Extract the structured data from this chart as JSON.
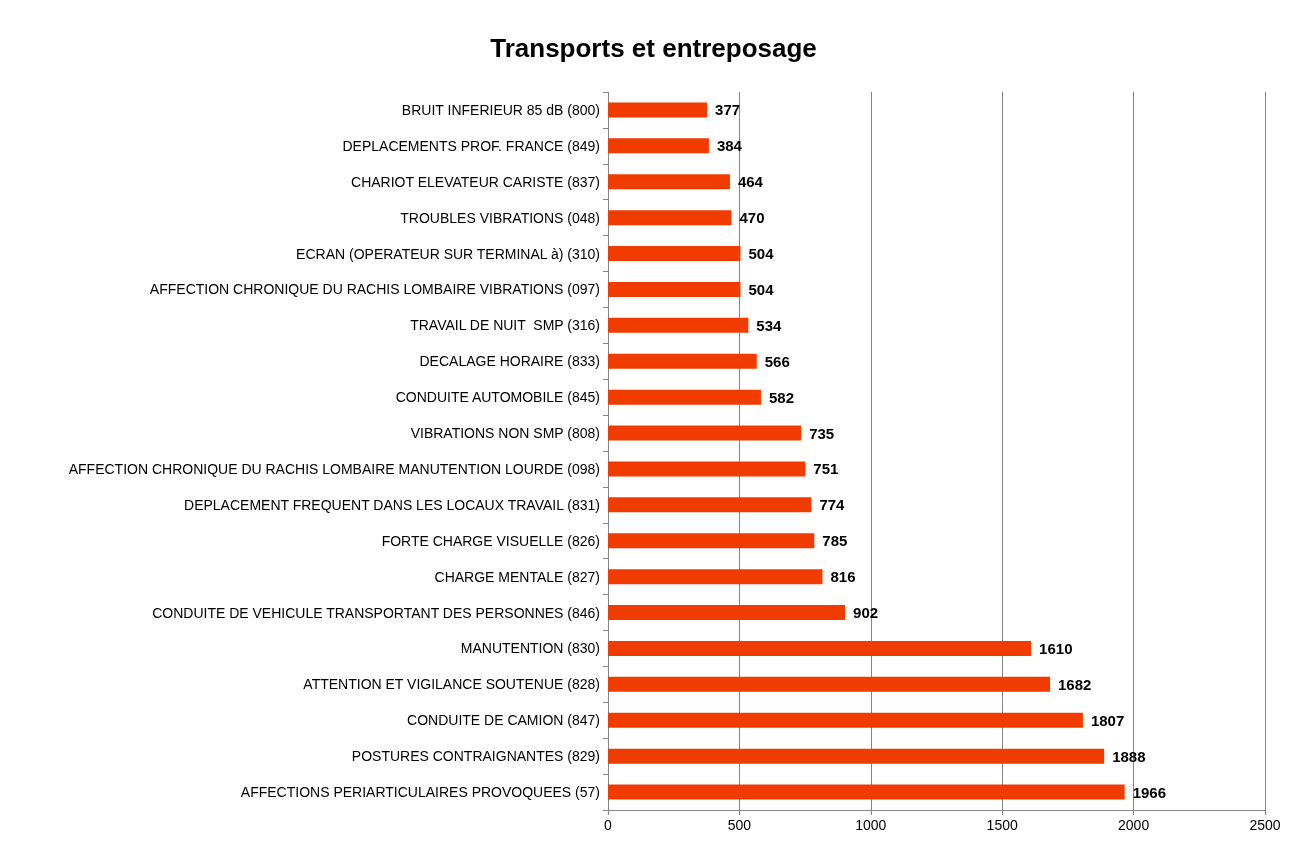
{
  "chart_data": {
    "type": "bar",
    "orientation": "horizontal",
    "title": "Transports et entreposage",
    "categories": [
      "BRUIT INFERIEUR 85 dB (800)",
      "DEPLACEMENTS PROF. FRANCE (849)",
      "CHARIOT ELEVATEUR CARISTE (837)",
      "TROUBLES VIBRATIONS (048)",
      "ECRAN (OPERATEUR SUR TERMINAL à) (310)",
      "AFFECTION CHRONIQUE DU RACHIS LOMBAIRE VIBRATIONS (097)",
      "TRAVAIL DE NUIT  SMP (316)",
      "DECALAGE HORAIRE (833)",
      "CONDUITE AUTOMOBILE (845)",
      "VIBRATIONS NON SMP (808)",
      "AFFECTION CHRONIQUE DU RACHIS LOMBAIRE MANUTENTION LOURDE (098)",
      "DEPLACEMENT FREQUENT DANS LES LOCAUX TRAVAIL (831)",
      "FORTE CHARGE VISUELLE (826)",
      "CHARGE MENTALE (827)",
      "CONDUITE DE VEHICULE TRANSPORTANT DES PERSONNES (846)",
      "MANUTENTION (830)",
      "ATTENTION ET VIGILANCE SOUTENUE (828)",
      "CONDUITE DE CAMION (847)",
      "POSTURES CONTRAIGNANTES (829)",
      "AFFECTIONS PERIARTICULAIRES PROVOQUEES (57)"
    ],
    "values": [
      377,
      384,
      464,
      470,
      504,
      504,
      534,
      566,
      582,
      735,
      751,
      774,
      785,
      816,
      902,
      1610,
      1682,
      1807,
      1888,
      1966
    ],
    "color": "#f03c00",
    "xlim": [
      0,
      2500
    ],
    "xticks": [
      0,
      500,
      1000,
      1500,
      2000,
      2500
    ],
    "grid": "x",
    "data_labels": true
  }
}
